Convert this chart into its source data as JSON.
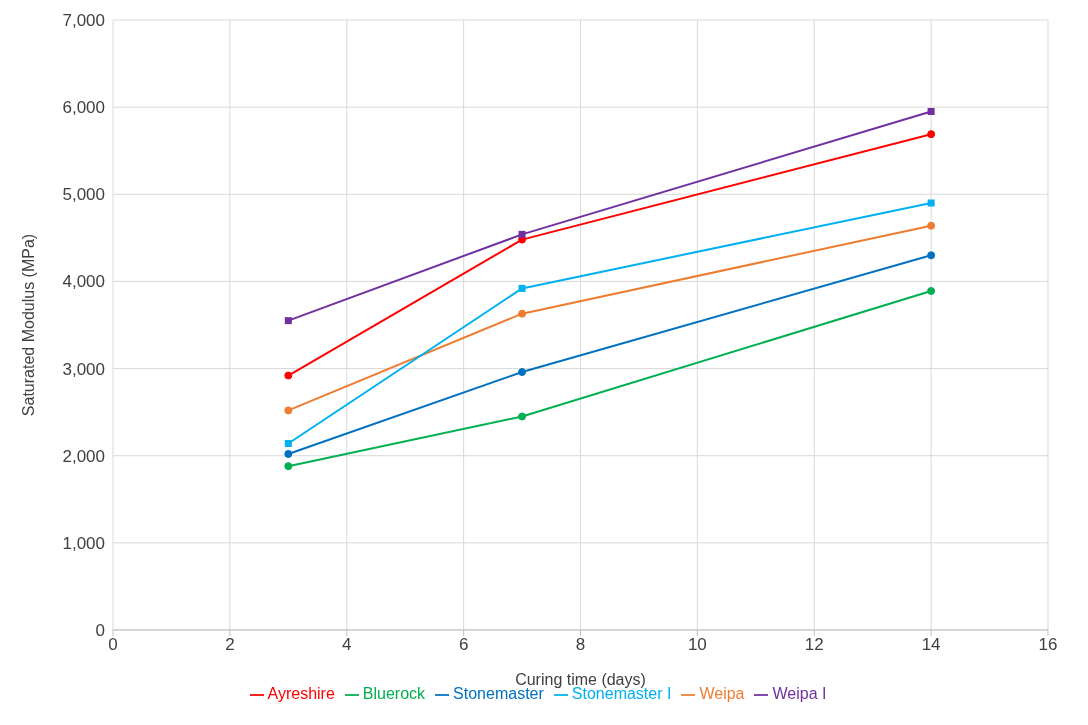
{
  "chart_data": {
    "type": "line",
    "xlabel": "Curing time (days)",
    "ylabel": "Saturated Modulus (MPa)",
    "x": [
      3,
      7,
      14
    ],
    "xlim": [
      0,
      16
    ],
    "xticks": [
      0,
      2,
      4,
      6,
      8,
      10,
      12,
      14,
      16
    ],
    "ylim": [
      0,
      7000
    ],
    "yticks": [
      {
        "value": 0,
        "label": "0"
      },
      {
        "value": 1000,
        "label": "1,000"
      },
      {
        "value": 2000,
        "label": "2,000"
      },
      {
        "value": 3000,
        "label": "3,000"
      },
      {
        "value": 4000,
        "label": "4,000"
      },
      {
        "value": 5000,
        "label": "5,000"
      },
      {
        "value": 6000,
        "label": "6,000"
      },
      {
        "value": 7000,
        "label": "7,000"
      }
    ],
    "grid": true,
    "legend": "bottom",
    "line_style": "solid",
    "series": [
      {
        "name": "Ayreshire",
        "color": "#ff0000",
        "marker": "circle",
        "values": [
          2920,
          4480,
          5690
        ]
      },
      {
        "name": "Bluerock",
        "color": "#00b050",
        "marker": "circle",
        "values": [
          1880,
          2450,
          3890
        ]
      },
      {
        "name": "Weipa",
        "color": "#ed7d31",
        "marker": "circle",
        "values": [
          2520,
          3630,
          4640
        ]
      },
      {
        "name": "Weipa I",
        "color": "#7030a0",
        "marker": "square",
        "values": [
          3550,
          4540,
          5950
        ]
      },
      {
        "name": "Stonemaster",
        "color": "#0070c0",
        "marker": "circle",
        "values": [
          2020,
          2960,
          4300
        ]
      },
      {
        "name": "Stonemaster I",
        "color": "#00b0f0",
        "marker": "square",
        "values": [
          2140,
          3920,
          4900
        ]
      }
    ]
  }
}
